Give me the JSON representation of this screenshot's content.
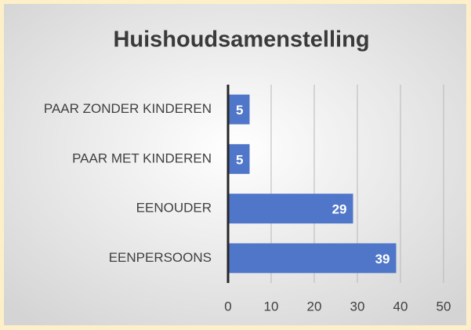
{
  "chart_data": {
    "type": "hbar",
    "title": "Huishoudsamenstelling",
    "categories": [
      "PAAR ZONDER KINDEREN",
      "PAAR MET KINDEREN",
      "EENOUDER",
      "EENPERSOONS"
    ],
    "values": [
      5,
      5,
      29,
      39
    ],
    "color": "#4f76c8",
    "xlim": [
      0,
      50
    ],
    "xticks": [
      0,
      10,
      20,
      30,
      40,
      50
    ],
    "grid": true
  }
}
